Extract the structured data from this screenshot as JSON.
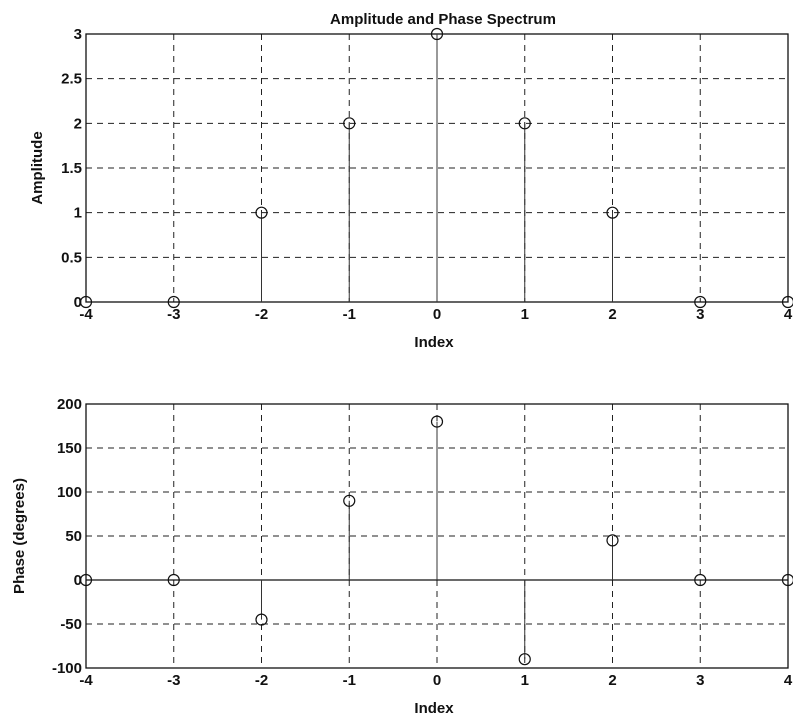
{
  "chart_data": [
    {
      "type": "stem",
      "title": "Amplitude and Phase Spectrum",
      "xlabel": "Index",
      "ylabel": "Amplitude",
      "xlim": [
        -4,
        4
      ],
      "ylim": [
        0,
        3
      ],
      "xticks": [
        -4,
        -3,
        -2,
        -1,
        0,
        1,
        2,
        3,
        4
      ],
      "yticks": [
        0,
        0.5,
        1,
        1.5,
        2,
        2.5,
        3
      ],
      "xtick_labels": [
        "-4",
        "-3",
        "-2",
        "-1",
        "0",
        "1",
        "2",
        "3",
        "4"
      ],
      "ytick_labels": [
        "0",
        "0.5",
        "1",
        "1.5",
        "2",
        "2.5",
        "3"
      ],
      "grid": true,
      "x": [
        -4,
        -3,
        -2,
        -1,
        0,
        1,
        2,
        3,
        4
      ],
      "y": [
        0,
        0,
        1,
        2,
        3,
        2,
        1,
        0,
        0
      ]
    },
    {
      "type": "stem",
      "title": "",
      "xlabel": "Index",
      "ylabel": "Phase (degrees)",
      "xlim": [
        -4,
        4
      ],
      "ylim": [
        -100,
        200
      ],
      "xticks": [
        -4,
        -3,
        -2,
        -1,
        0,
        1,
        2,
        3,
        4
      ],
      "yticks": [
        -100,
        -50,
        0,
        50,
        100,
        150,
        200
      ],
      "xtick_labels": [
        "-4",
        "-3",
        "-2",
        "-1",
        "0",
        "1",
        "2",
        "3",
        "4"
      ],
      "ytick_labels": [
        "-100",
        "-50",
        "0",
        "50",
        "100",
        "150",
        "200"
      ],
      "grid": true,
      "x": [
        -4,
        -3,
        -2,
        -1,
        0,
        1,
        2,
        3,
        4
      ],
      "y": [
        0,
        0,
        -45,
        90,
        180,
        -90,
        45,
        0,
        0
      ]
    }
  ]
}
